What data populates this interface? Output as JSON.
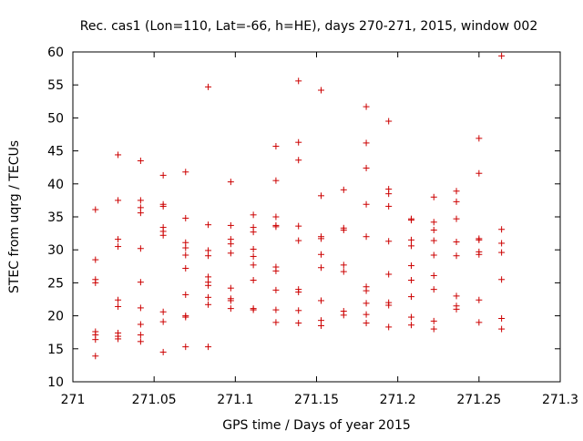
{
  "chart_data": {
    "type": "scatter",
    "title": "Rec. cas1 (Lon=110, Lat=-66, h=HE), days 270-271, 2015, window 002",
    "xlabel": "GPS time / Days of year 2015",
    "ylabel": "STEC from uqrg / TECUs",
    "xlim": [
      271,
      271.3
    ],
    "ylim": [
      10,
      60
    ],
    "xticks": [
      "271",
      "271.05",
      "271.1",
      "271.15",
      "271.2",
      "271.25",
      "271.3"
    ],
    "yticks": [
      "10",
      "15",
      "20",
      "25",
      "30",
      "35",
      "40",
      "45",
      "50",
      "55",
      "60"
    ],
    "grid": false,
    "marker": "+",
    "marker_color": "#cc0000",
    "series": [
      {
        "name": "STEC",
        "points": [
          [
            271.0139,
            36.1
          ],
          [
            271.0139,
            28.5
          ],
          [
            271.0139,
            25.5
          ],
          [
            271.0139,
            25.0
          ],
          [
            271.0139,
            17.6
          ],
          [
            271.0139,
            17.1
          ],
          [
            271.0139,
            16.4
          ],
          [
            271.0139,
            13.9
          ],
          [
            271.0278,
            44.4
          ],
          [
            271.0278,
            37.5
          ],
          [
            271.0278,
            31.6
          ],
          [
            271.0278,
            30.5
          ],
          [
            271.0278,
            22.4
          ],
          [
            271.0278,
            21.4
          ],
          [
            271.0278,
            17.4
          ],
          [
            271.0278,
            16.9
          ],
          [
            271.0278,
            16.5
          ],
          [
            271.0417,
            43.5
          ],
          [
            271.0417,
            37.5
          ],
          [
            271.0417,
            36.4
          ],
          [
            271.0417,
            35.6
          ],
          [
            271.0417,
            30.2
          ],
          [
            271.0417,
            25.1
          ],
          [
            271.0417,
            21.2
          ],
          [
            271.0417,
            18.7
          ],
          [
            271.0417,
            17.1
          ],
          [
            271.0417,
            16.1
          ],
          [
            271.0556,
            41.3
          ],
          [
            271.0556,
            36.9
          ],
          [
            271.0556,
            36.6
          ],
          [
            271.0556,
            33.4
          ],
          [
            271.0556,
            32.8
          ],
          [
            271.0556,
            32.2
          ],
          [
            271.0556,
            20.6
          ],
          [
            271.0556,
            19.1
          ],
          [
            271.0556,
            14.5
          ],
          [
            271.0694,
            41.8
          ],
          [
            271.0694,
            34.8
          ],
          [
            271.0694,
            31.1
          ],
          [
            271.0694,
            30.3
          ],
          [
            271.0694,
            29.2
          ],
          [
            271.0694,
            27.2
          ],
          [
            271.0694,
            23.2
          ],
          [
            271.0694,
            20.0
          ],
          [
            271.0694,
            19.8
          ],
          [
            271.0694,
            15.3
          ],
          [
            271.0833,
            54.7
          ],
          [
            271.0833,
            33.8
          ],
          [
            271.0833,
            29.9
          ],
          [
            271.0833,
            29.1
          ],
          [
            271.0833,
            25.9
          ],
          [
            271.0833,
            25.1
          ],
          [
            271.0833,
            24.6
          ],
          [
            271.0833,
            22.8
          ],
          [
            271.0833,
            21.7
          ],
          [
            271.0833,
            15.3
          ],
          [
            271.0972,
            40.3
          ],
          [
            271.0972,
            33.7
          ],
          [
            271.0972,
            31.6
          ],
          [
            271.0972,
            30.9
          ],
          [
            271.0972,
            29.5
          ],
          [
            271.0972,
            24.2
          ],
          [
            271.0972,
            22.6
          ],
          [
            271.0972,
            22.3
          ],
          [
            271.0972,
            21.1
          ],
          [
            271.1111,
            35.3
          ],
          [
            271.1111,
            33.4
          ],
          [
            271.1111,
            32.7
          ],
          [
            271.1111,
            30.1
          ],
          [
            271.1111,
            29.0
          ],
          [
            271.1111,
            27.7
          ],
          [
            271.1111,
            25.4
          ],
          [
            271.1111,
            21.1
          ],
          [
            271.1111,
            20.9
          ],
          [
            271.125,
            45.7
          ],
          [
            271.125,
            40.5
          ],
          [
            271.125,
            35.0
          ],
          [
            271.125,
            33.7
          ],
          [
            271.125,
            33.5
          ],
          [
            271.125,
            27.4
          ],
          [
            271.125,
            26.8
          ],
          [
            271.125,
            23.9
          ],
          [
            271.125,
            20.9
          ],
          [
            271.125,
            19.0
          ],
          [
            271.1389,
            55.6
          ],
          [
            271.1389,
            46.3
          ],
          [
            271.1389,
            43.6
          ],
          [
            271.1389,
            33.6
          ],
          [
            271.1389,
            31.4
          ],
          [
            271.1389,
            24.0
          ],
          [
            271.1389,
            23.6
          ],
          [
            271.1389,
            20.8
          ],
          [
            271.1389,
            18.9
          ],
          [
            271.1528,
            54.2
          ],
          [
            271.1528,
            38.2
          ],
          [
            271.1528,
            32.0
          ],
          [
            271.1528,
            31.7
          ],
          [
            271.1528,
            29.3
          ],
          [
            271.1528,
            27.3
          ],
          [
            271.1528,
            22.3
          ],
          [
            271.1528,
            19.3
          ],
          [
            271.1528,
            18.5
          ],
          [
            271.1667,
            39.1
          ],
          [
            271.1667,
            33.3
          ],
          [
            271.1667,
            33.0
          ],
          [
            271.1667,
            27.7
          ],
          [
            271.1667,
            26.7
          ],
          [
            271.1667,
            20.7
          ],
          [
            271.1667,
            20.1
          ],
          [
            271.1806,
            51.7
          ],
          [
            271.1806,
            46.2
          ],
          [
            271.1806,
            42.4
          ],
          [
            271.1806,
            36.9
          ],
          [
            271.1806,
            32.0
          ],
          [
            271.1806,
            24.4
          ],
          [
            271.1806,
            23.8
          ],
          [
            271.1806,
            21.9
          ],
          [
            271.1806,
            20.2
          ],
          [
            271.1806,
            18.9
          ],
          [
            271.1944,
            49.5
          ],
          [
            271.1944,
            39.2
          ],
          [
            271.1944,
            38.5
          ],
          [
            271.1944,
            36.6
          ],
          [
            271.1944,
            31.3
          ],
          [
            271.1944,
            26.3
          ],
          [
            271.1944,
            22.0
          ],
          [
            271.1944,
            21.6
          ],
          [
            271.1944,
            18.3
          ],
          [
            271.2083,
            34.7
          ],
          [
            271.2083,
            34.5
          ],
          [
            271.2083,
            31.5
          ],
          [
            271.2083,
            30.6
          ],
          [
            271.2083,
            27.6
          ],
          [
            271.2083,
            25.4
          ],
          [
            271.2083,
            22.9
          ],
          [
            271.2083,
            19.8
          ],
          [
            271.2083,
            18.6
          ],
          [
            271.2222,
            38.0
          ],
          [
            271.2222,
            34.2
          ],
          [
            271.2222,
            33.0
          ],
          [
            271.2222,
            31.4
          ],
          [
            271.2222,
            29.2
          ],
          [
            271.2222,
            26.1
          ],
          [
            271.2222,
            24.0
          ],
          [
            271.2222,
            19.2
          ],
          [
            271.2222,
            18.0
          ],
          [
            271.2361,
            38.9
          ],
          [
            271.2361,
            37.3
          ],
          [
            271.2361,
            34.7
          ],
          [
            271.2361,
            31.2
          ],
          [
            271.2361,
            29.1
          ],
          [
            271.2361,
            23.0
          ],
          [
            271.2361,
            21.5
          ],
          [
            271.2361,
            21.0
          ],
          [
            271.25,
            46.9
          ],
          [
            271.25,
            41.6
          ],
          [
            271.25,
            31.7
          ],
          [
            271.25,
            31.5
          ],
          [
            271.25,
            29.7
          ],
          [
            271.25,
            29.3
          ],
          [
            271.25,
            22.4
          ],
          [
            271.25,
            19.0
          ],
          [
            271.2639,
            59.4
          ],
          [
            271.2639,
            33.1
          ],
          [
            271.2639,
            31.0
          ],
          [
            271.2639,
            29.6
          ],
          [
            271.2639,
            25.5
          ],
          [
            271.2639,
            19.6
          ],
          [
            271.2639,
            18.0
          ]
        ]
      }
    ]
  }
}
